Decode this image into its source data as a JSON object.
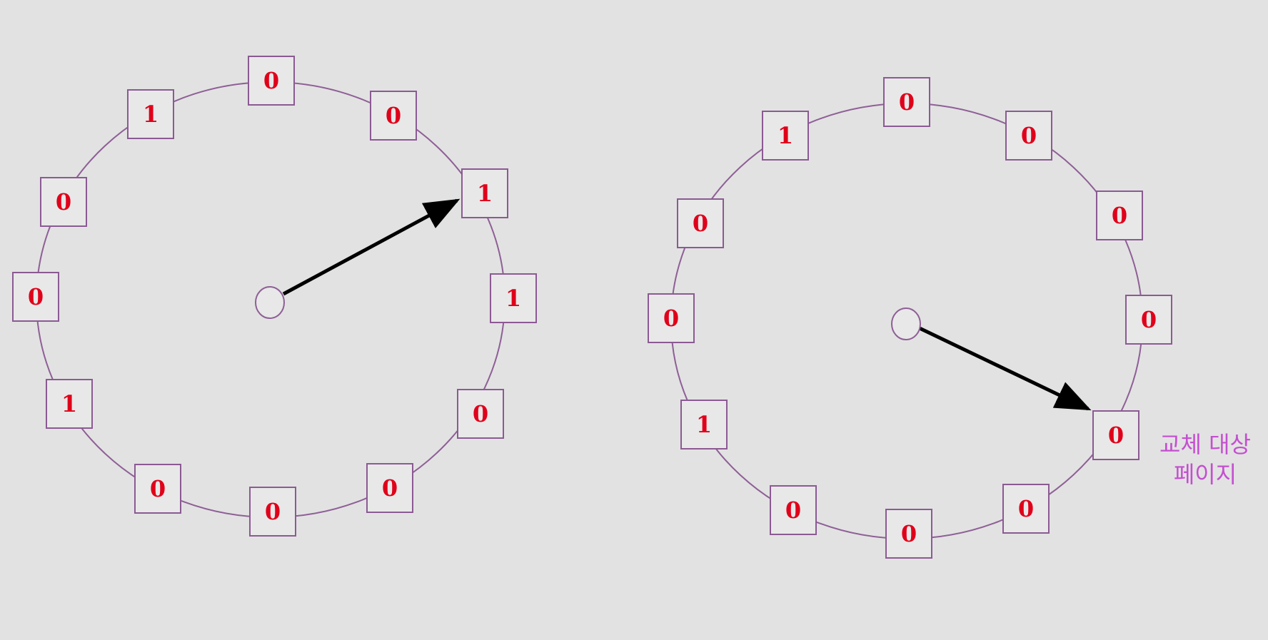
{
  "colors": {
    "background": "#e2e2e2",
    "ring": "#8e5f96",
    "box_border": "#8b5a93",
    "box_fill": "#e8e8e8",
    "bit_text": "#e0001a",
    "pointer": "#000000",
    "label": "#c44fd0"
  },
  "clocks": [
    {
      "name": "clock-before",
      "bits": [
        "0",
        "0",
        "1",
        "1",
        "0",
        "0",
        "0",
        "0",
        "1",
        "0",
        "0",
        "1"
      ]
    },
    {
      "name": "clock-after",
      "bits": [
        "0",
        "0",
        "0",
        "0",
        "0",
        "0",
        "0",
        "0",
        "1",
        "0",
        "0",
        "1"
      ]
    }
  ],
  "replacement_label": {
    "line1": "교체 대상",
    "line2": "페이지"
  }
}
